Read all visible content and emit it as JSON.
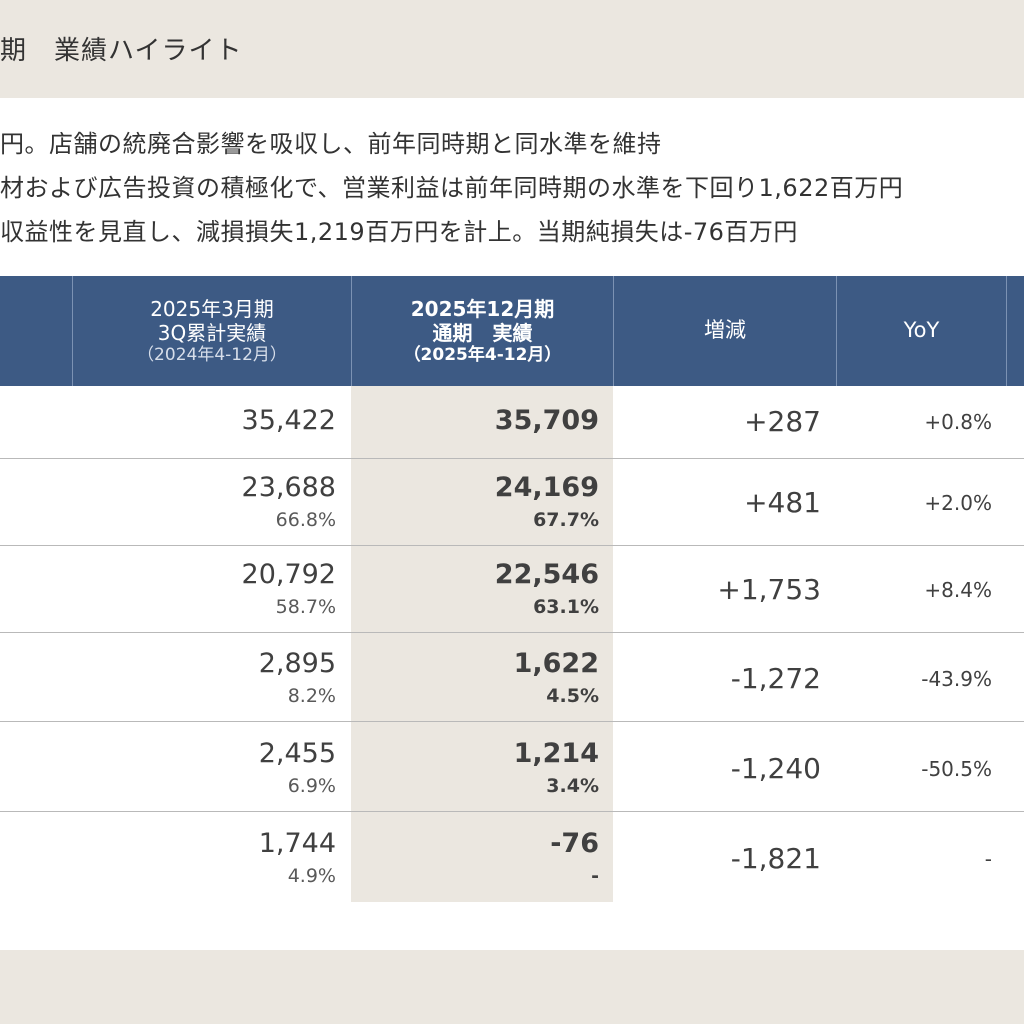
{
  "header": {
    "title": "期　業績ハイライト"
  },
  "bullets": [
    "円。店舗の統廃合影響を吸収し、前年同時期と同水準を維持",
    "材および広告投資の積極化で、営業利益は前年同時期の水準を下回り1,622百万円",
    "収益性を見直し、減損損失1,219百万円を計上。当期純損失は-76百万円"
  ],
  "table": {
    "col_prior": {
      "line1": "2025年3月期",
      "line2": "3Q累計実績",
      "line3": "（2024年4-12月）"
    },
    "col_current": {
      "line1": "2025年12月期",
      "line2": "通期　実績",
      "line3": "（2025年4-12月）"
    },
    "col_diff": "増減",
    "col_yoy": "YoY",
    "rows": [
      {
        "prior": "35,422",
        "prior_ratio": "",
        "current": "35,709",
        "current_ratio": "",
        "diff": "+287",
        "yoy": "+0.8%"
      },
      {
        "prior": "23,688",
        "prior_ratio": "66.8%",
        "current": "24,169",
        "current_ratio": "67.7%",
        "diff": "+481",
        "yoy": "+2.0%"
      },
      {
        "prior": "20,792",
        "prior_ratio": "58.7%",
        "current": "22,546",
        "current_ratio": "63.1%",
        "diff": "+1,753",
        "yoy": "+8.4%"
      },
      {
        "prior": "2,895",
        "prior_ratio": "8.2%",
        "current": "1,622",
        "current_ratio": "4.5%",
        "diff": "-1,272",
        "yoy": "-43.9%"
      },
      {
        "prior": "2,455",
        "prior_ratio": "6.9%",
        "current": "1,214",
        "current_ratio": "3.4%",
        "diff": "-1,240",
        "yoy": "-50.5%"
      },
      {
        "prior": "1,744",
        "prior_ratio": "4.9%",
        "current": "-76",
        "current_ratio": "-",
        "diff": "-1,821",
        "yoy": "-"
      }
    ]
  },
  "colors": {
    "header_band": "#ebe7e0",
    "table_header": "#3d5a84",
    "highlight_column": "#ebe7e0"
  }
}
